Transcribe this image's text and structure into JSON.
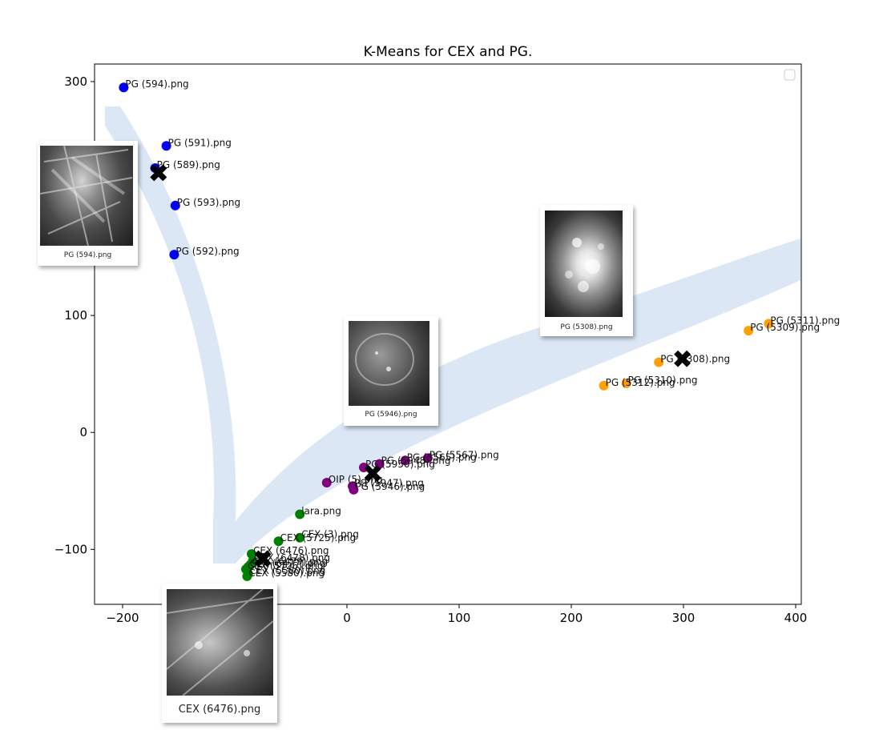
{
  "chart_data": {
    "type": "scatter",
    "title": "K-Means for CEX and PG.",
    "xlim": [
      -225,
      405
    ],
    "ylim": [
      -147,
      315
    ],
    "xticks": [
      -200,
      -100,
      0,
      100,
      200,
      300,
      400
    ],
    "yticks": [
      -100,
      0,
      100,
      300
    ],
    "xtick_labels": [
      "−200",
      "−100",
      "0",
      "100",
      "200",
      "300",
      "400"
    ],
    "ytick_labels": [
      "−100",
      "0",
      "100",
      "300"
    ],
    "legend": "top-right (empty)",
    "clusters": [
      {
        "color": "#0000ff",
        "points": [
          {
            "x": -199,
            "y": 295,
            "label": "PG (594).png"
          },
          {
            "x": -161,
            "y": 245,
            "label": "PG (591).png"
          },
          {
            "x": -171,
            "y": 226,
            "label": "PG (589).png"
          },
          {
            "x": -153,
            "y": 194,
            "label": "PG (593).png"
          },
          {
            "x": -154,
            "y": 152,
            "label": "PG (592).png"
          }
        ],
        "centroid": {
          "x": -168,
          "y": 222
        }
      },
      {
        "color": "#ff9f00",
        "points": [
          {
            "x": 376,
            "y": 93,
            "label": "PG (5311).png"
          },
          {
            "x": 358,
            "y": 87,
            "label": "PG (5309).png"
          },
          {
            "x": 278,
            "y": 60,
            "label": "PG (5308).png"
          },
          {
            "x": 249,
            "y": 42,
            "label": "PG (5310).png"
          },
          {
            "x": 229,
            "y": 40,
            "label": "PG (5312).png"
          }
        ],
        "centroid": {
          "x": 299,
          "y": 63
        }
      },
      {
        "color": "#800080",
        "points": [
          {
            "x": 72,
            "y": -22,
            "label": "PG (5567).png"
          },
          {
            "x": 52,
            "y": -24,
            "label": "PG (5565).png"
          },
          {
            "x": 29,
            "y": -27,
            "label": "PG (5948).png"
          },
          {
            "x": 15,
            "y": -30,
            "label": "PG (5950).png"
          },
          {
            "x": -18,
            "y": -43,
            "label": "OIP (5).png"
          },
          {
            "x": 5,
            "y": -46,
            "label": "PG (5947).png"
          },
          {
            "x": 6,
            "y": -49,
            "label": "PG (5946).png"
          }
        ],
        "centroid": {
          "x": 23,
          "y": -35
        }
      },
      {
        "color": "#008000",
        "points": [
          {
            "x": -42,
            "y": -70,
            "label": "lara.png"
          },
          {
            "x": -42,
            "y": -90,
            "label": "CEX (3).png"
          },
          {
            "x": -61,
            "y": -93,
            "label": "CEX (5725).png"
          },
          {
            "x": -85,
            "y": -104,
            "label": "CEX (6476).png"
          },
          {
            "x": -84,
            "y": -110,
            "label": "CEX (6478).png"
          },
          {
            "x": -86,
            "y": -113,
            "label": "CEX (6479).png"
          },
          {
            "x": -88,
            "y": -115,
            "label": "CEX (6477).png"
          },
          {
            "x": -90,
            "y": -117,
            "label": "CEX (5726).png"
          },
          {
            "x": -88,
            "y": -121,
            "label": "CEX (5580).png"
          },
          {
            "x": -89,
            "y": -123,
            "label": "CEX (5580).png"
          }
        ],
        "centroid": {
          "x": -75,
          "y": -108
        }
      }
    ]
  },
  "thumbnails": [
    {
      "caption": "PG (594).png"
    },
    {
      "caption": "PG (5308).png"
    },
    {
      "caption": "PG (5946).png"
    },
    {
      "caption": "CEX (6476).png"
    }
  ],
  "colors": {
    "axis": "#000000",
    "band": "#dbe7f5",
    "centroid": "#000000"
  }
}
